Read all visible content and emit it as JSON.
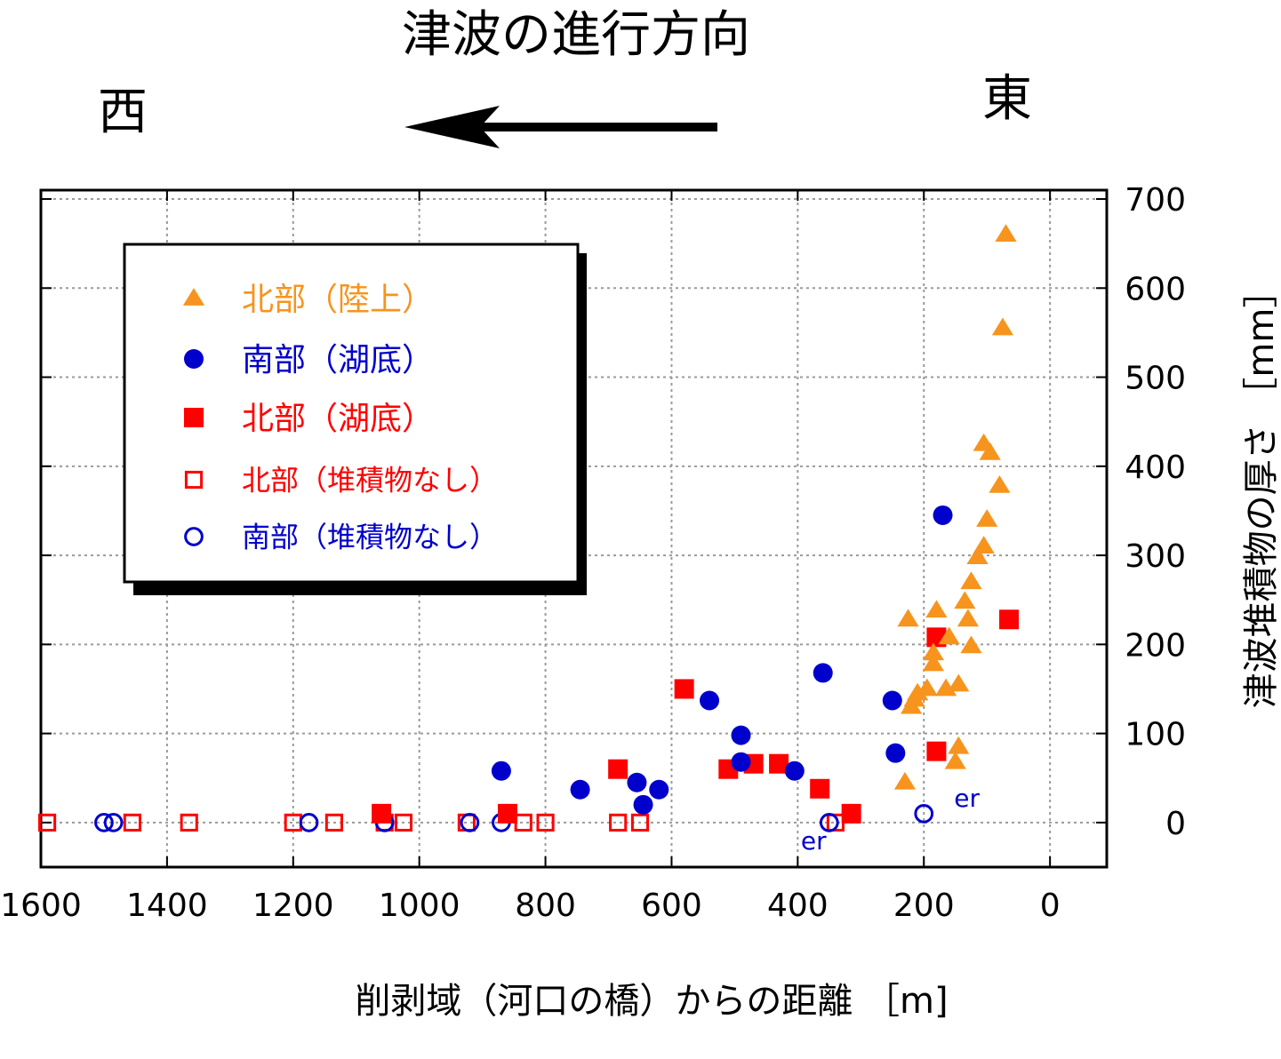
{
  "header": {
    "direction_title": "津波の進行方向",
    "west_label": "西",
    "east_label": "東"
  },
  "chart_data": {
    "type": "scatter",
    "xlabel": "削剥域（河口の橋）からの距離 ［m]",
    "ylabel": "津波堆積物の厚さ ［mm］",
    "xlim": [
      1600,
      -90
    ],
    "ylim": [
      -50,
      710
    ],
    "x_ticks": [
      1600,
      1400,
      1200,
      1000,
      800,
      600,
      400,
      200,
      0
    ],
    "y_ticks": [
      0,
      100,
      200,
      300,
      400,
      500,
      600,
      700
    ],
    "x_axis_reversed": true,
    "y_axis_side": "right",
    "grid": true,
    "legend_position": "top-left",
    "series": [
      {
        "name": "北部（陸上）",
        "marker": "triangle-filled",
        "color": "#f7941d",
        "points": [
          [
            70,
            660
          ],
          [
            75,
            555
          ],
          [
            105,
            425
          ],
          [
            95,
            415
          ],
          [
            80,
            378
          ],
          [
            100,
            340
          ],
          [
            105,
            310
          ],
          [
            115,
            298
          ],
          [
            125,
            270
          ],
          [
            135,
            248
          ],
          [
            130,
            228
          ],
          [
            225,
            228
          ],
          [
            180,
            238
          ],
          [
            160,
            208
          ],
          [
            125,
            198
          ],
          [
            185,
            190
          ],
          [
            185,
            178
          ],
          [
            145,
            155
          ],
          [
            165,
            150
          ],
          [
            195,
            150
          ],
          [
            210,
            145
          ],
          [
            215,
            138
          ],
          [
            220,
            130
          ],
          [
            145,
            85
          ],
          [
            150,
            68
          ],
          [
            230,
            45
          ]
        ]
      },
      {
        "name": "南部（湖底）",
        "marker": "circle-filled",
        "color": "#0000cc",
        "points": [
          [
            170,
            345
          ],
          [
            360,
            168
          ],
          [
            540,
            137
          ],
          [
            250,
            137
          ],
          [
            490,
            98
          ],
          [
            245,
            78
          ],
          [
            870,
            58
          ],
          [
            405,
            58
          ],
          [
            490,
            68
          ],
          [
            655,
            45
          ],
          [
            620,
            37
          ],
          [
            745,
            37
          ],
          [
            645,
            20
          ]
        ]
      },
      {
        "name": "北部（湖底）",
        "marker": "square-filled",
        "color": "#ff0000",
        "points": [
          [
            65,
            228
          ],
          [
            180,
            208
          ],
          [
            580,
            150
          ],
          [
            180,
            80
          ],
          [
            685,
            60
          ],
          [
            510,
            60
          ],
          [
            470,
            66
          ],
          [
            430,
            66
          ],
          [
            365,
            38
          ],
          [
            315,
            10
          ],
          [
            1060,
            10
          ],
          [
            860,
            10
          ]
        ]
      },
      {
        "name": "北部（堆積物なし）",
        "marker": "square-open",
        "color": "#ff0000",
        "points": [
          [
            1590,
            0
          ],
          [
            1455,
            0
          ],
          [
            1365,
            0
          ],
          [
            1200,
            0
          ],
          [
            1135,
            0
          ],
          [
            1055,
            0
          ],
          [
            1025,
            0
          ],
          [
            925,
            0
          ],
          [
            835,
            0
          ],
          [
            800,
            0
          ],
          [
            685,
            0
          ],
          [
            650,
            0
          ],
          [
            340,
            0
          ]
        ]
      },
      {
        "name": "南部（堆積物なし）",
        "marker": "circle-open",
        "color": "#0000cc",
        "points": [
          [
            1500,
            0
          ],
          [
            1485,
            0
          ],
          [
            1175,
            0
          ],
          [
            1055,
            0
          ],
          [
            920,
            0
          ],
          [
            870,
            0
          ],
          [
            350,
            0
          ],
          [
            200,
            10
          ]
        ]
      }
    ],
    "annotations": [
      {
        "text": "er",
        "x": 395,
        "y": -30,
        "color": "#0000cc"
      },
      {
        "text": "er",
        "x": 152,
        "y": 18,
        "color": "#0000cc"
      }
    ]
  }
}
